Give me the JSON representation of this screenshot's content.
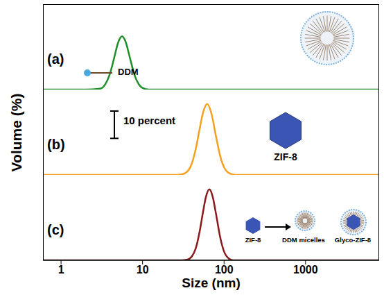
{
  "chart_data": {
    "type": "line",
    "xlabel": "Size (nm)",
    "ylabel": "Volume (%)",
    "log": "x",
    "xlim": [
      0.6,
      8000
    ],
    "xticks": [
      1,
      10,
      100,
      1000
    ],
    "ylim": [
      0,
      30
    ],
    "tick_labels": "x",
    "scale_bar": {
      "value": 10,
      "label": "10 percent"
    },
    "series": [
      {
        "name": "(a)",
        "color": "#1f8f2a",
        "annotations": [
          "DDM"
        ],
        "x": [
          0.6,
          2,
          3,
          3.5,
          4,
          4.5,
          5,
          5.6,
          6.2,
          7,
          8,
          9,
          10,
          12,
          8000
        ],
        "values": [
          0,
          0,
          0.3,
          2.0,
          6.0,
          11.8,
          17.1,
          19.5,
          17.5,
          11.6,
          5.2,
          1.9,
          0.6,
          0,
          0
        ]
      },
      {
        "name": "(b)",
        "color": "#f5a020",
        "annotations": [
          "ZIF-8"
        ],
        "x": [
          0.6,
          25,
          30,
          35,
          40,
          45,
          50,
          55,
          62,
          70,
          80,
          90,
          100,
          120,
          140,
          8000
        ],
        "values": [
          0,
          0,
          0.2,
          1.1,
          4.0,
          9.6,
          16.6,
          22.6,
          26,
          22.5,
          13.8,
          6.7,
          2.8,
          0.4,
          0,
          0
        ]
      },
      {
        "name": "(c)",
        "color": "#8b1a1a",
        "annotations": [
          "ZIF-8",
          "DDM micelles",
          "Glyco-ZIF-8"
        ],
        "x": [
          0.6,
          30,
          35,
          40,
          45,
          50,
          55,
          60,
          66,
          72,
          80,
          90,
          100,
          115,
          130,
          8000
        ],
        "values": [
          0,
          0,
          0.2,
          1.3,
          4.4,
          10.3,
          17.4,
          23.3,
          26,
          23.7,
          16.7,
          8.2,
          3.2,
          0.6,
          0,
          0
        ]
      }
    ]
  }
}
